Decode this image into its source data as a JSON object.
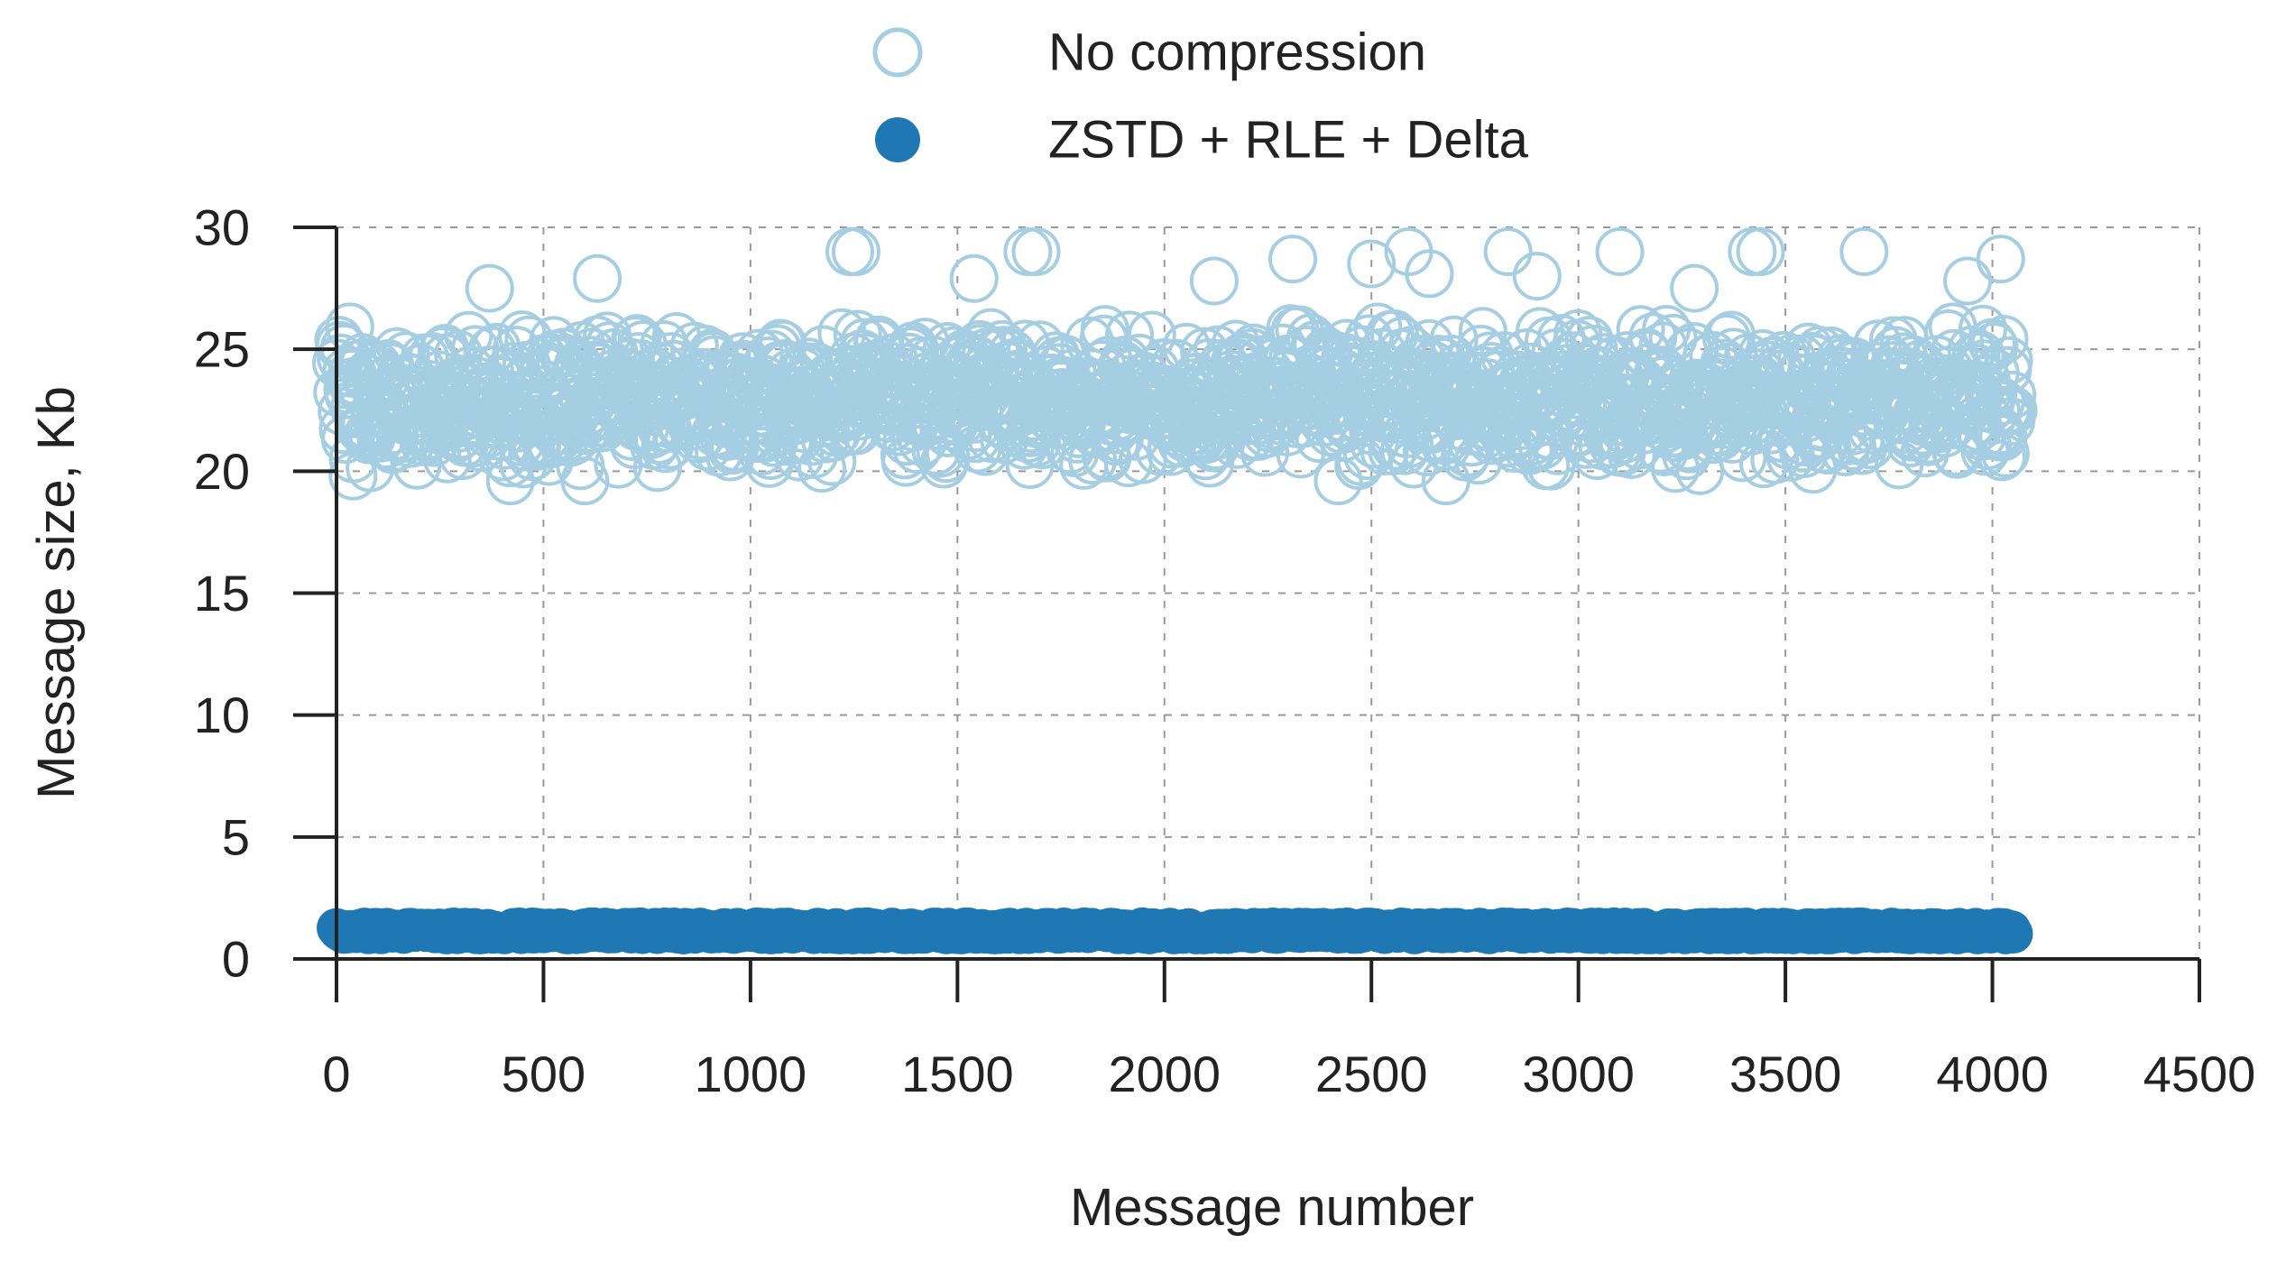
{
  "chart_data": {
    "type": "scatter",
    "xlabel": "Message number",
    "ylabel": "Message size, Kb",
    "xlim": [
      0,
      4500
    ],
    "ylim": [
      0,
      30
    ],
    "x_ticks": [
      "0",
      "500",
      "1000",
      "1500",
      "2000",
      "2500",
      "3000",
      "3500",
      "4000",
      "4500"
    ],
    "y_ticks": [
      "0",
      "5",
      "10",
      "15",
      "20",
      "25",
      "30"
    ],
    "grid": true,
    "legend_position": "top-center",
    "series": [
      {
        "name": "No compression",
        "marker": "open-circle",
        "color": "#a6cee3",
        "x_range": [
          0,
          4050
        ],
        "count": 4050,
        "typical_range": [
          20,
          26
        ],
        "min": 19.5,
        "max": 29.3,
        "mean": 23.5,
        "outliers": [
          {
            "x": 1240,
            "y": 29.0
          },
          {
            "x": 1255,
            "y": 29.0
          },
          {
            "x": 1670,
            "y": 29.0
          },
          {
            "x": 1690,
            "y": 29.0
          },
          {
            "x": 2590,
            "y": 29.0
          },
          {
            "x": 2830,
            "y": 29.0
          },
          {
            "x": 3100,
            "y": 29.0
          },
          {
            "x": 3420,
            "y": 29.0
          },
          {
            "x": 3440,
            "y": 29.0
          },
          {
            "x": 3690,
            "y": 29.0
          },
          {
            "x": 4020,
            "y": 28.7
          },
          {
            "x": 2310,
            "y": 28.7
          },
          {
            "x": 2500,
            "y": 28.5
          },
          {
            "x": 370,
            "y": 27.5
          },
          {
            "x": 630,
            "y": 27.9
          },
          {
            "x": 1540,
            "y": 27.9
          },
          {
            "x": 2120,
            "y": 27.8
          },
          {
            "x": 2640,
            "y": 28.1
          },
          {
            "x": 2900,
            "y": 28.0
          },
          {
            "x": 3280,
            "y": 27.5
          },
          {
            "x": 3940,
            "y": 27.8
          },
          {
            "x": 420,
            "y": 19.6
          },
          {
            "x": 600,
            "y": 19.6
          },
          {
            "x": 2420,
            "y": 19.6
          },
          {
            "x": 2680,
            "y": 19.6
          },
          {
            "x": 40,
            "y": 19.8
          }
        ]
      },
      {
        "name": "ZSTD + RLE + Delta",
        "marker": "filled-circle",
        "color": "#1f78b4",
        "x_range": [
          0,
          4050
        ],
        "count": 4050,
        "typical_range": [
          1.0,
          1.3
        ],
        "mean": 1.15
      }
    ]
  }
}
